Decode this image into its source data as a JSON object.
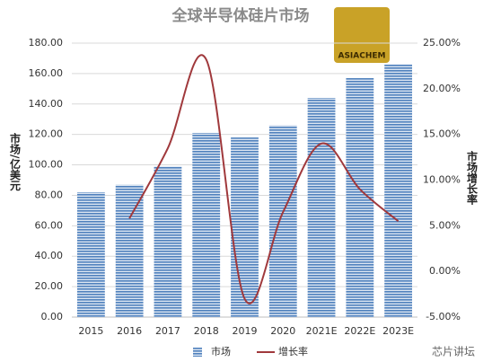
{
  "chart_data": {
    "type": "bar_line",
    "title": "全球半导体硅片市场",
    "y_label": "市场/亿美元",
    "y2_label": "市场增长率",
    "annotations": [
      "ASIACHEM",
      "芯片讲坛"
    ],
    "categories": [
      "2015",
      "2016",
      "2017",
      "2018",
      "2019",
      "2020",
      "2021E",
      "2022E",
      "2023E"
    ],
    "series": [
      {
        "name": "市场",
        "type": "bar",
        "color": "#4f81bd",
        "values": [
          82,
          87,
          99,
          121,
          118,
          126,
          144,
          157,
          166
        ]
      },
      {
        "name": "增长率",
        "type": "line",
        "axis": "y2",
        "color": "#a0393c",
        "values": [
          null,
          5.8,
          13.5,
          23.2,
          -3,
          6.5,
          14,
          9,
          5.5
        ]
      }
    ],
    "ylim": [
      0,
      180
    ],
    "yticks": [
      {
        "value": 0,
        "label": "0.00"
      },
      {
        "value": 20,
        "label": "20.00"
      },
      {
        "value": 40,
        "label": "40.00"
      },
      {
        "value": 60,
        "label": "60.00"
      },
      {
        "value": 80,
        "label": "80.00"
      },
      {
        "value": 100,
        "label": "100.00"
      },
      {
        "value": 120,
        "label": "120.00"
      },
      {
        "value": 140,
        "label": "140.00"
      },
      {
        "value": 160,
        "label": "160.00"
      },
      {
        "value": 180,
        "label": "180.00"
      }
    ],
    "y2lim": [
      -5,
      25
    ],
    "y2ticks": [
      {
        "value": -5,
        "label": "-5.00%"
      },
      {
        "value": 0,
        "label": "0.00%"
      },
      {
        "value": 5,
        "label": "5.00%"
      },
      {
        "value": 10,
        "label": "10.00%"
      },
      {
        "value": 15,
        "label": "15.00%"
      },
      {
        "value": 20,
        "label": "20.00%"
      },
      {
        "value": 25,
        "label": "25.00%"
      }
    ],
    "grid": true
  }
}
